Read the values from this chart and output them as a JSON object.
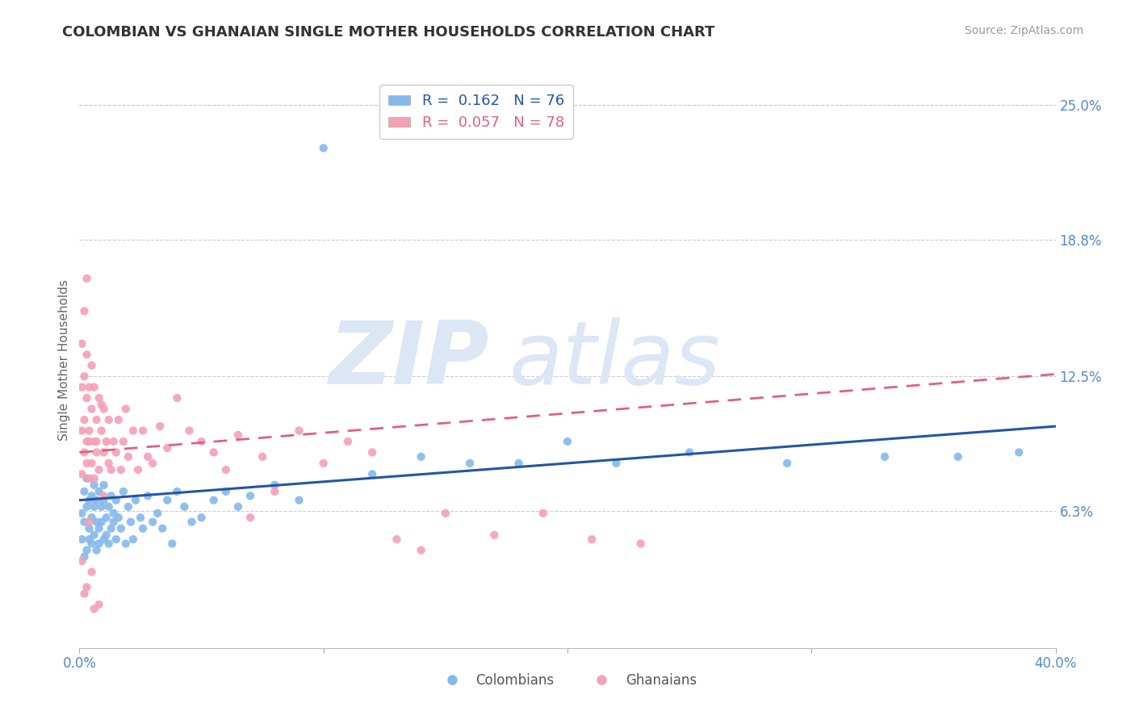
{
  "title": "COLOMBIAN VS GHANAIAN SINGLE MOTHER HOUSEHOLDS CORRELATION CHART",
  "source": "Source: ZipAtlas.com",
  "ylabel": "Single Mother Households",
  "right_yticks": [
    0.063,
    0.125,
    0.188,
    0.25
  ],
  "right_yticklabels": [
    "6.3%",
    "12.5%",
    "18.8%",
    "25.0%"
  ],
  "xlim": [
    0.0,
    0.4
  ],
  "ylim": [
    0.0,
    0.265
  ],
  "colombian_R": 0.162,
  "colombian_N": 76,
  "ghanaian_R": 0.057,
  "ghanaian_N": 78,
  "colombian_color": "#85b8ec",
  "ghanaian_color": "#f5a0b5",
  "colombian_line_color": "#2255aa",
  "ghanaian_line_color": "#e06080",
  "watermark_color": "#dce6f5",
  "background_color": "#ffffff",
  "grid_color": "#cccccc",
  "colombian_scatter_x": [
    0.001,
    0.001,
    0.002,
    0.002,
    0.002,
    0.003,
    0.003,
    0.003,
    0.004,
    0.004,
    0.004,
    0.005,
    0.005,
    0.005,
    0.006,
    0.006,
    0.006,
    0.007,
    0.007,
    0.007,
    0.008,
    0.008,
    0.008,
    0.009,
    0.009,
    0.01,
    0.01,
    0.01,
    0.011,
    0.011,
    0.012,
    0.012,
    0.013,
    0.013,
    0.014,
    0.014,
    0.015,
    0.015,
    0.016,
    0.017,
    0.018,
    0.019,
    0.02,
    0.021,
    0.022,
    0.023,
    0.025,
    0.026,
    0.028,
    0.03,
    0.032,
    0.034,
    0.036,
    0.038,
    0.04,
    0.043,
    0.046,
    0.05,
    0.055,
    0.06,
    0.065,
    0.07,
    0.08,
    0.09,
    0.1,
    0.12,
    0.14,
    0.16,
    0.18,
    0.2,
    0.22,
    0.25,
    0.29,
    0.33,
    0.36,
    0.385
  ],
  "colombian_scatter_y": [
    0.05,
    0.062,
    0.042,
    0.058,
    0.072,
    0.045,
    0.065,
    0.078,
    0.05,
    0.068,
    0.055,
    0.048,
    0.07,
    0.06,
    0.052,
    0.065,
    0.075,
    0.058,
    0.045,
    0.068,
    0.055,
    0.072,
    0.048,
    0.065,
    0.058,
    0.05,
    0.068,
    0.075,
    0.052,
    0.06,
    0.048,
    0.065,
    0.055,
    0.07,
    0.058,
    0.062,
    0.05,
    0.068,
    0.06,
    0.055,
    0.072,
    0.048,
    0.065,
    0.058,
    0.05,
    0.068,
    0.06,
    0.055,
    0.07,
    0.058,
    0.062,
    0.055,
    0.068,
    0.048,
    0.072,
    0.065,
    0.058,
    0.06,
    0.068,
    0.072,
    0.065,
    0.07,
    0.075,
    0.068,
    0.23,
    0.08,
    0.088,
    0.085,
    0.085,
    0.095,
    0.085,
    0.09,
    0.085,
    0.088,
    0.088,
    0.09
  ],
  "ghanaian_scatter_x": [
    0.001,
    0.001,
    0.001,
    0.001,
    0.002,
    0.002,
    0.002,
    0.002,
    0.003,
    0.003,
    0.003,
    0.003,
    0.003,
    0.004,
    0.004,
    0.004,
    0.004,
    0.005,
    0.005,
    0.005,
    0.006,
    0.006,
    0.006,
    0.007,
    0.007,
    0.007,
    0.008,
    0.008,
    0.009,
    0.009,
    0.01,
    0.01,
    0.011,
    0.012,
    0.012,
    0.013,
    0.014,
    0.015,
    0.016,
    0.017,
    0.018,
    0.019,
    0.02,
    0.022,
    0.024,
    0.026,
    0.028,
    0.03,
    0.033,
    0.036,
    0.04,
    0.045,
    0.05,
    0.055,
    0.06,
    0.065,
    0.07,
    0.075,
    0.08,
    0.09,
    0.1,
    0.11,
    0.12,
    0.13,
    0.14,
    0.15,
    0.17,
    0.19,
    0.21,
    0.23,
    0.01,
    0.004,
    0.002,
    0.001,
    0.005,
    0.003,
    0.008,
    0.006
  ],
  "ghanaian_scatter_y": [
    0.1,
    0.12,
    0.08,
    0.14,
    0.105,
    0.09,
    0.125,
    0.155,
    0.085,
    0.115,
    0.095,
    0.135,
    0.17,
    0.078,
    0.1,
    0.12,
    0.095,
    0.085,
    0.11,
    0.13,
    0.078,
    0.12,
    0.095,
    0.09,
    0.105,
    0.095,
    0.115,
    0.082,
    0.1,
    0.112,
    0.11,
    0.09,
    0.095,
    0.085,
    0.105,
    0.082,
    0.095,
    0.09,
    0.105,
    0.082,
    0.095,
    0.11,
    0.088,
    0.1,
    0.082,
    0.1,
    0.088,
    0.085,
    0.102,
    0.092,
    0.115,
    0.1,
    0.095,
    0.09,
    0.082,
    0.098,
    0.06,
    0.088,
    0.072,
    0.1,
    0.085,
    0.095,
    0.09,
    0.05,
    0.045,
    0.062,
    0.052,
    0.062,
    0.05,
    0.048,
    0.07,
    0.058,
    0.025,
    0.04,
    0.035,
    0.028,
    0.02,
    0.018
  ]
}
